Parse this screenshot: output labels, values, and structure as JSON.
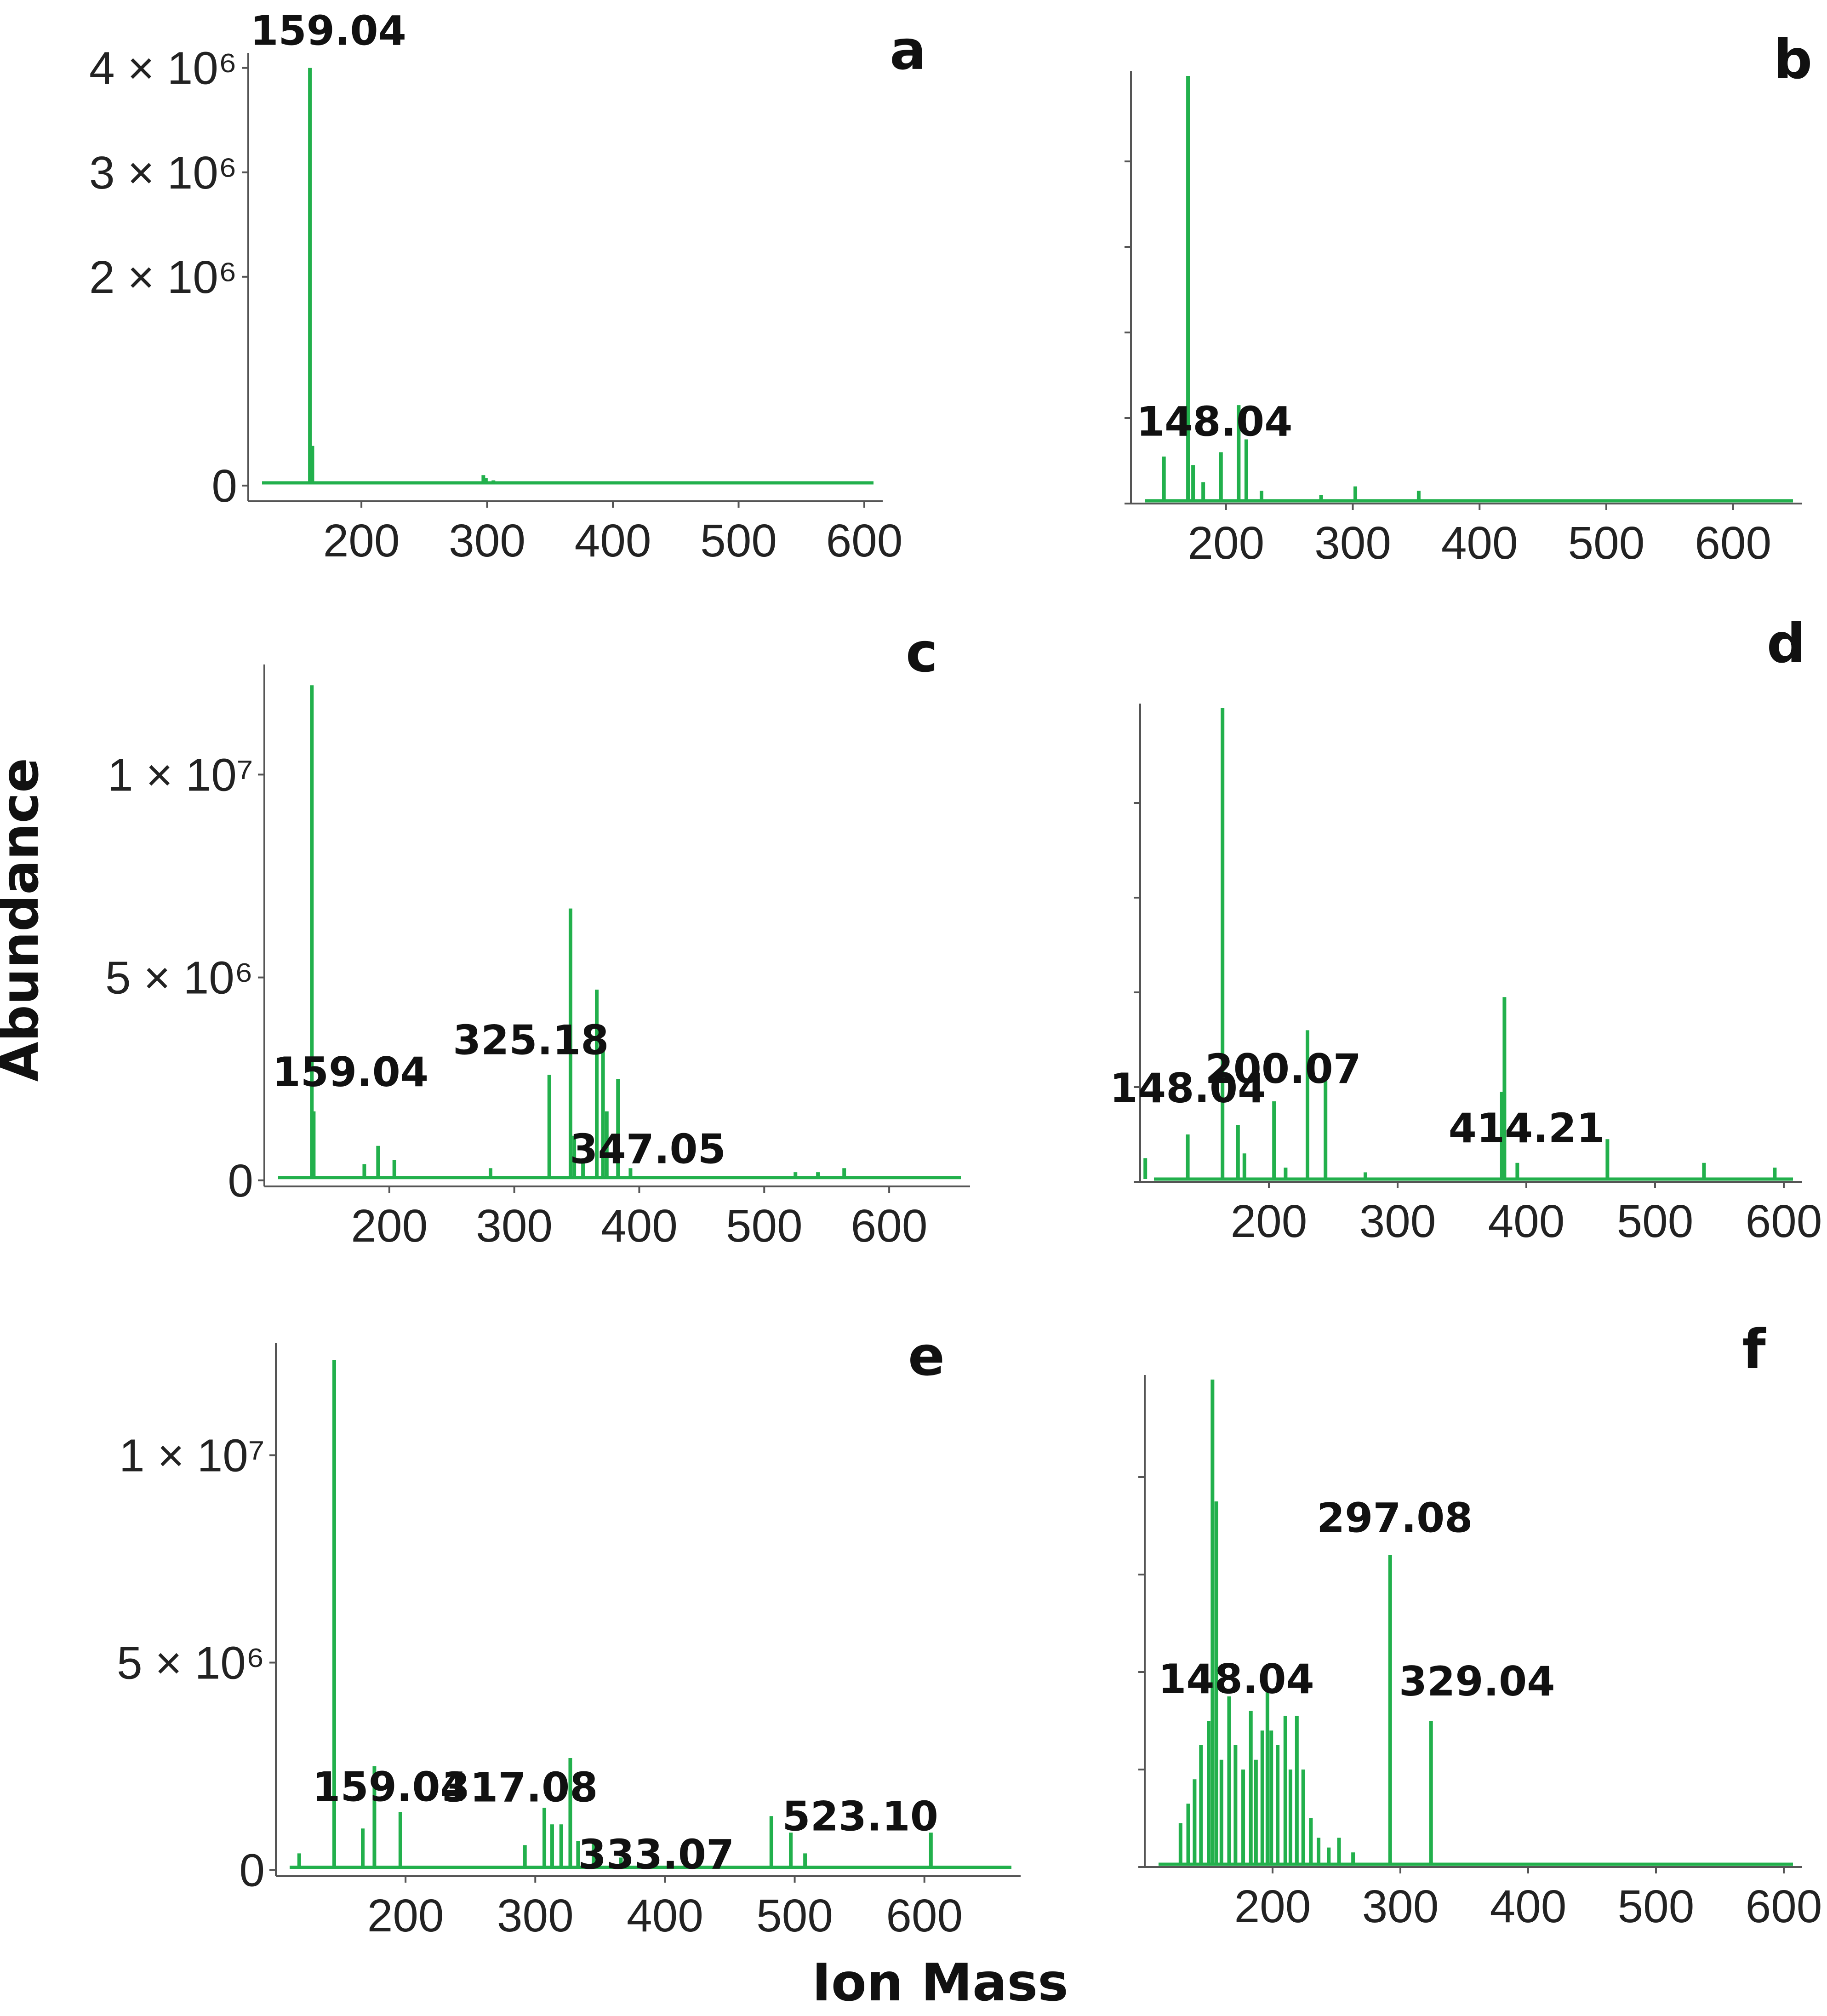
{
  "axis_titles": {
    "y": "Abundance",
    "x": "Ion Mass"
  },
  "colors": {
    "series": "#22b04c",
    "axis": "#555555",
    "text": "#111111"
  },
  "chart_data": [
    {
      "panel": "a",
      "type": "bar",
      "xlim": [
        110,
        600
      ],
      "ylim": [
        -150000,
        4100000
      ],
      "x_ticks": [
        200,
        300,
        400,
        500,
        600
      ],
      "x_tick_labels": [
        "200",
        "300",
        "400",
        "500",
        "600"
      ],
      "y_ticks": [
        {
          "value": 0,
          "label": "0"
        },
        {
          "value": 2000000,
          "label": "2 × 10⁶"
        },
        {
          "value": 3000000,
          "label": "3 × 10⁶"
        },
        {
          "value": 4000000,
          "label": "4 × 10⁶"
        }
      ],
      "annotations": [
        {
          "x": 159.04,
          "label": "159.04"
        }
      ],
      "peaks": [
        [
          124,
          30000
        ],
        [
          159.04,
          4000000
        ],
        [
          161,
          380000
        ],
        [
          297,
          100000
        ],
        [
          299,
          70000
        ],
        [
          305,
          50000
        ],
        [
          428,
          30000
        ]
      ]
    },
    {
      "panel": "b",
      "type": "bar",
      "xlim": [
        125,
        640
      ],
      "ylim": [
        0,
        100
      ],
      "x_ticks": [
        200,
        300,
        400,
        500,
        600
      ],
      "x_tick_labels": [
        "200",
        "300",
        "400",
        "500",
        "600"
      ],
      "y_ticks": [
        {
          "value": 0,
          "label": ""
        },
        {
          "value": 20,
          "label": ""
        },
        {
          "value": 40,
          "label": ""
        },
        {
          "value": 60,
          "label": ""
        },
        {
          "value": 80,
          "label": ""
        }
      ],
      "annotations": [
        {
          "x": 148.04,
          "label": "148.04"
        }
      ],
      "peaks": [
        [
          151,
          11
        ],
        [
          170,
          100
        ],
        [
          174,
          9
        ],
        [
          182,
          5
        ],
        [
          196,
          12
        ],
        [
          210,
          23
        ],
        [
          216,
          15
        ],
        [
          228,
          3
        ],
        [
          275,
          2
        ],
        [
          302,
          4
        ],
        [
          352,
          3
        ],
        [
          603,
          1
        ]
      ]
    },
    {
      "panel": "c",
      "type": "bar",
      "xlim": [
        100,
        650
      ],
      "ylim": [
        -150000,
        12600000
      ],
      "x_ticks": [
        200,
        300,
        400,
        500,
        600
      ],
      "x_tick_labels": [
        "200",
        "300",
        "400",
        "500",
        "600"
      ],
      "y_ticks": [
        {
          "value": 0,
          "label": "0"
        },
        {
          "value": 5000000,
          "label": "5 × 10⁶"
        },
        {
          "value": 10000000,
          "label": "1 × 10⁷"
        }
      ],
      "annotations": [
        {
          "x": 325.18,
          "label": "325.18"
        },
        {
          "x": 347.05,
          "label": "347.05"
        },
        {
          "value_note": "base peak",
          "x": 159.04,
          "label": "159.04"
        }
      ],
      "peaks": [
        [
          138,
          12200000
        ],
        [
          139.5,
          1700000
        ],
        [
          180,
          400000
        ],
        [
          191,
          850000
        ],
        [
          204,
          500000
        ],
        [
          281,
          300000
        ],
        [
          328,
          2600000
        ],
        [
          345,
          6700000
        ],
        [
          348,
          1100000
        ],
        [
          355,
          500000
        ],
        [
          366,
          4700000
        ],
        [
          371,
          3300000
        ],
        [
          374,
          1700000
        ],
        [
          383,
          2500000
        ],
        [
          393,
          300000
        ],
        [
          525,
          200000
        ],
        [
          543,
          200000
        ],
        [
          564,
          300000
        ]
      ]
    },
    {
      "panel": "d",
      "type": "bar",
      "xlim": [
        100,
        600
      ],
      "ylim": [
        0,
        100
      ],
      "x_ticks": [
        200,
        300,
        400,
        500,
        600
      ],
      "x_tick_labels": [
        "200",
        "300",
        "400",
        "500",
        "600"
      ],
      "y_ticks": [
        {
          "value": 0,
          "label": ""
        },
        {
          "value": 20,
          "label": ""
        },
        {
          "value": 40,
          "label": ""
        },
        {
          "value": 60,
          "label": ""
        },
        {
          "value": 80,
          "label": ""
        }
      ],
      "annotations": [
        {
          "x": 148.04,
          "label": "148.04"
        },
        {
          "x": 200.07,
          "label": "200.07"
        },
        {
          "x": 414.21,
          "label": "414.21"
        }
      ],
      "peaks": [
        [
          104,
          5
        ],
        [
          137,
          10
        ],
        [
          164,
          100
        ],
        [
          176,
          12
        ],
        [
          181,
          6
        ],
        [
          204,
          17
        ],
        [
          213,
          3
        ],
        [
          230,
          32
        ],
        [
          244,
          22
        ],
        [
          275,
          2
        ],
        [
          381,
          19
        ],
        [
          383,
          39
        ],
        [
          393,
          4
        ],
        [
          463,
          9
        ],
        [
          538,
          4
        ],
        [
          593,
          3
        ]
      ]
    },
    {
      "panel": "e",
      "type": "bar",
      "xlim": [
        100,
        660
      ],
      "ylim": [
        -150000,
        12600000
      ],
      "x_ticks": [
        200,
        300,
        400,
        500,
        600
      ],
      "x_tick_labels": [
        "200",
        "300",
        "400",
        "500",
        "600"
      ],
      "y_ticks": [
        {
          "value": 0,
          "label": "0"
        },
        {
          "value": 5000000,
          "label": "5 × 10⁶"
        },
        {
          "value": 10000000,
          "label": "1 × 10⁷"
        }
      ],
      "annotations": [
        {
          "x": 159.04,
          "label": "159.04"
        },
        {
          "x": 317.08,
          "label": "317.08"
        },
        {
          "x": 333.07,
          "label": "333.07"
        },
        {
          "x": 523.1,
          "label": "523.10"
        }
      ],
      "peaks": [
        [
          118,
          400000
        ],
        [
          145,
          12300000
        ],
        [
          167,
          1000000
        ],
        [
          176,
          2500000
        ],
        [
          196,
          1400000
        ],
        [
          292,
          600000
        ],
        [
          307,
          1500000
        ],
        [
          313,
          1100000
        ],
        [
          320,
          1100000
        ],
        [
          327,
          2700000
        ],
        [
          333,
          700000
        ],
        [
          345,
          700000
        ],
        [
          366,
          300000
        ],
        [
          482,
          1300000
        ],
        [
          497,
          900000
        ],
        [
          508,
          400000
        ],
        [
          605,
          900000
        ]
      ]
    },
    {
      "panel": "f",
      "type": "bar",
      "xlim": [
        100,
        600
      ],
      "ylim": [
        0,
        100
      ],
      "x_ticks": [
        200,
        300,
        400,
        500,
        600
      ],
      "x_tick_labels": [
        "200",
        "300",
        "400",
        "500",
        "600"
      ],
      "y_ticks": [
        {
          "value": 0,
          "label": ""
        },
        {
          "value": 20,
          "label": ""
        },
        {
          "value": 40,
          "label": ""
        },
        {
          "value": 60,
          "label": ""
        },
        {
          "value": 80,
          "label": ""
        }
      ],
      "annotations": [
        {
          "x": 148.04,
          "label": "148.04"
        },
        {
          "x": 297.08,
          "label": "297.08"
        },
        {
          "x": 329.04,
          "label": "329.04"
        }
      ],
      "peaks": [
        [
          128,
          9
        ],
        [
          134,
          13
        ],
        [
          139,
          18
        ],
        [
          144,
          25
        ],
        [
          150,
          30
        ],
        [
          153,
          100
        ],
        [
          156,
          75
        ],
        [
          160,
          22
        ],
        [
          166,
          35
        ],
        [
          171,
          25
        ],
        [
          177,
          20
        ],
        [
          183,
          32
        ],
        [
          187,
          22
        ],
        [
          192,
          28
        ],
        [
          196,
          36
        ],
        [
          199,
          28
        ],
        [
          204,
          25
        ],
        [
          210,
          31
        ],
        [
          214,
          20
        ],
        [
          219,
          31
        ],
        [
          224,
          20
        ],
        [
          230,
          10
        ],
        [
          236,
          6
        ],
        [
          244,
          4
        ],
        [
          252,
          6
        ],
        [
          263,
          3
        ],
        [
          292,
          64
        ],
        [
          324,
          30
        ]
      ]
    }
  ]
}
